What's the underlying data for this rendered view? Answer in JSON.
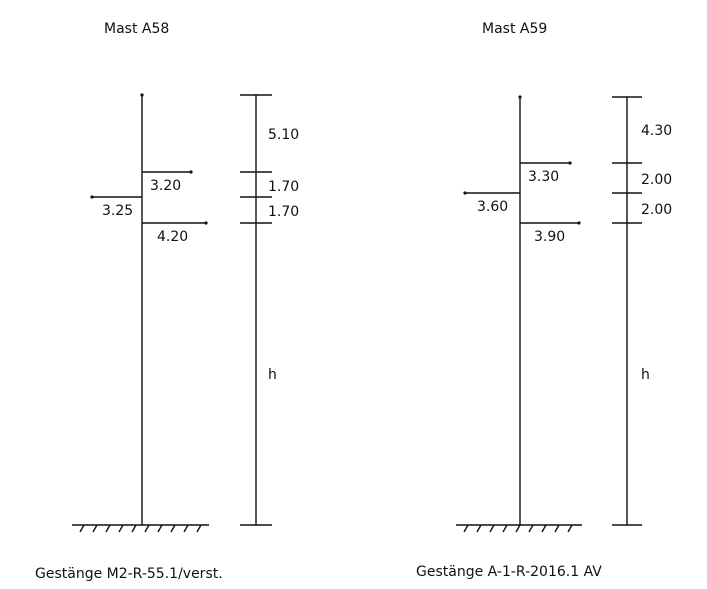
{
  "masts": [
    {
      "title": "Mast A58",
      "arms": [
        "3.20",
        "3.25",
        "4.20"
      ],
      "segments": [
        "5.10",
        "1.70",
        "1.70",
        "h"
      ],
      "caption": "Gestänge M2-R-55.1/verst."
    },
    {
      "title": "Mast A59",
      "arms": [
        "3.30",
        "3.60",
        "3.90"
      ],
      "segments": [
        "4.30",
        "2.00",
        "2.00",
        "h"
      ],
      "caption": "Gestänge A-1-R-2016.1 AV"
    }
  ]
}
